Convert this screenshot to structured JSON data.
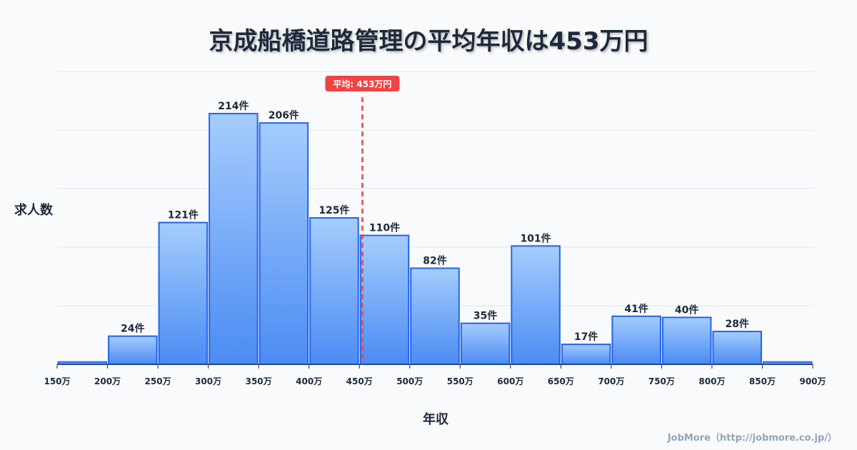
{
  "chart_data": {
    "type": "bar",
    "title": "京成船橋道路管理の平均年収は453万円",
    "xlabel": "年収",
    "ylabel": "求人数",
    "x_ticks": [
      "150万",
      "200万",
      "250万",
      "300万",
      "350万",
      "400万",
      "450万",
      "500万",
      "550万",
      "600万",
      "650万",
      "700万",
      "750万",
      "800万",
      "850万",
      "900万"
    ],
    "bins": [
      150,
      200,
      250,
      300,
      350,
      400,
      450,
      500,
      550,
      600,
      650,
      700,
      750,
      800,
      850,
      900
    ],
    "values": [
      2,
      24,
      121,
      214,
      206,
      125,
      110,
      82,
      35,
      101,
      17,
      41,
      40,
      28,
      2
    ],
    "labels": [
      "",
      "24件",
      "121件",
      "214件",
      "206件",
      "125件",
      "110件",
      "82件",
      "35件",
      "101件",
      "17件",
      "41件",
      "40件",
      "28件",
      ""
    ],
    "xlim": [
      150,
      900
    ],
    "ylim": [
      0,
      250
    ],
    "grid": true,
    "mean": 453,
    "mean_label": "平均: 453万円",
    "colors": {
      "bar_top": "#a5cdfd",
      "bar_bottom": "#4b8bf3",
      "bar_stroke": "#2563eb",
      "mean": "#ef4444"
    }
  },
  "footer": "JobMore（http://jobmore.co.jp/）"
}
